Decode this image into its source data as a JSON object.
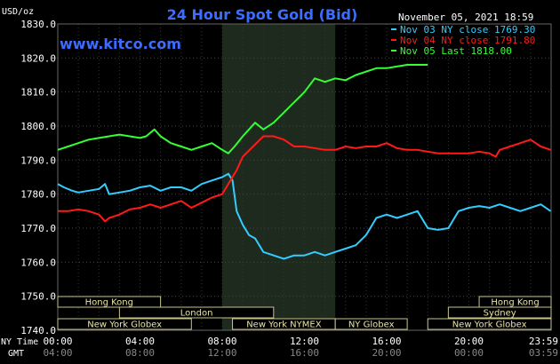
{
  "chart_data": {
    "type": "line",
    "title": "24 Hour Spot Gold (Bid)",
    "date_label": "November 05, 2021 18:59",
    "watermark": "www.kitco.com",
    "yunit": "USD/oz",
    "ylim": [
      1740,
      1830
    ],
    "ytick_values": [
      1740,
      1750,
      1760,
      1770,
      1780,
      1790,
      1800,
      1810,
      1820,
      1830
    ],
    "ytick_labels": [
      "1740.0",
      "1750.0",
      "1760.0",
      "1770.0",
      "1780.0",
      "1790.0",
      "1800.0",
      "1810.0",
      "1820.0",
      "1830.0"
    ],
    "xlim": [
      0,
      24
    ],
    "xtick_values": [
      0,
      4,
      8,
      12,
      16,
      20,
      23.983
    ],
    "xtick_labels_ny": [
      "00:00",
      "04:00",
      "08:00",
      "12:00",
      "16:00",
      "20:00",
      "23:59"
    ],
    "xtick_labels_gmt": [
      "04:00",
      "08:00",
      "12:00",
      "16:00",
      "20:00",
      "00:00",
      "03:59"
    ],
    "x_axis_label_ny": "NY Time",
    "x_axis_label_gmt": "GMT",
    "shaded_range": [
      8,
      13.5
    ],
    "grid": true,
    "legend_position": "top-right",
    "series": [
      {
        "name": "Nov 03 NY close 1769.30",
        "color": "#33ccff",
        "x": [
          0,
          0.3,
          0.7,
          1.0,
          1.5,
          2.0,
          2.3,
          2.5,
          3.0,
          3.5,
          4.0,
          4.5,
          5.0,
          5.5,
          6.0,
          6.5,
          7.0,
          7.5,
          8.0,
          8.3,
          8.5,
          8.7,
          9.0,
          9.3,
          9.6,
          10.0,
          10.5,
          11.0,
          11.5,
          12.0,
          12.5,
          13.0,
          13.5,
          14.0,
          14.5,
          15.0,
          15.5,
          16.0,
          16.5,
          17.0,
          17.5,
          18.0,
          18.5,
          19.0,
          19.5,
          20.0,
          20.5,
          21.0,
          21.5,
          22.0,
          22.5,
          23.0,
          23.5,
          23.98
        ],
        "y": [
          1783,
          1782,
          1781,
          1780.5,
          1781,
          1781.5,
          1783,
          1780,
          1780.5,
          1781,
          1782,
          1782.5,
          1781,
          1782,
          1782,
          1781,
          1783,
          1784,
          1785,
          1786,
          1784,
          1775,
          1771,
          1768,
          1767,
          1763,
          1762,
          1761,
          1762,
          1762,
          1763,
          1762,
          1763,
          1764,
          1765,
          1768,
          1773,
          1774,
          1773,
          1774,
          1775,
          1770,
          1769.5,
          1770,
          1775,
          1776,
          1776.5,
          1776,
          1777,
          1776,
          1775,
          1776,
          1777,
          1775
        ]
      },
      {
        "name": "Nov 04 NY close 1791.80",
        "color": "#ff1a1a",
        "x": [
          0,
          0.5,
          1.0,
          1.5,
          2.0,
          2.3,
          2.5,
          3.0,
          3.5,
          4.0,
          4.5,
          5.0,
          5.5,
          6.0,
          6.5,
          7.0,
          7.5,
          8.0,
          8.3,
          8.7,
          9.0,
          9.5,
          10.0,
          10.5,
          11.0,
          11.5,
          12.0,
          12.5,
          13.0,
          13.5,
          14.0,
          14.5,
          15.0,
          15.5,
          16.0,
          16.5,
          17.0,
          17.5,
          18.0,
          18.5,
          19.0,
          19.5,
          20.0,
          20.5,
          21.0,
          21.3,
          21.5,
          22.0,
          22.5,
          23.0,
          23.5,
          23.98
        ],
        "y": [
          1775,
          1775,
          1775.5,
          1775,
          1774,
          1772,
          1773,
          1774,
          1775.5,
          1776,
          1777,
          1776,
          1777,
          1778,
          1776,
          1777.5,
          1779,
          1780,
          1783,
          1787,
          1791,
          1794,
          1797,
          1797,
          1796,
          1794,
          1794,
          1793.5,
          1793,
          1793,
          1794,
          1793.5,
          1794,
          1794,
          1795,
          1793.5,
          1793,
          1793,
          1792.5,
          1792,
          1792,
          1792,
          1792,
          1792.5,
          1792,
          1791,
          1793,
          1794,
          1795,
          1796,
          1794,
          1793
        ]
      },
      {
        "name": "Nov 05 Last 1818.00",
        "color": "#33ff33",
        "x": [
          0,
          0.5,
          1.0,
          1.5,
          2.0,
          2.5,
          3.0,
          3.5,
          4.0,
          4.3,
          4.7,
          5.0,
          5.5,
          6.0,
          6.5,
          7.0,
          7.5,
          8.0,
          8.3,
          8.6,
          9.0,
          9.3,
          9.6,
          10.0,
          10.5,
          11.0,
          11.5,
          12.0,
          12.5,
          13.0,
          13.5,
          14.0,
          14.5,
          15.0,
          15.5,
          16.0,
          16.5,
          17.0,
          17.5,
          18.0
        ],
        "y": [
          1793,
          1794,
          1795,
          1796,
          1796.5,
          1797,
          1797.5,
          1797,
          1796.5,
          1797,
          1799,
          1797,
          1795,
          1794,
          1793,
          1794,
          1795,
          1793,
          1792,
          1794,
          1797,
          1799,
          1801,
          1799,
          1801,
          1804,
          1807,
          1810,
          1814,
          1813,
          1814,
          1813.5,
          1815,
          1816,
          1817,
          1817,
          1817.5,
          1818,
          1818,
          1818
        ]
      }
    ]
  },
  "market_bars": [
    {
      "label": "Hong Kong",
      "start": 0,
      "end": 5
    },
    {
      "label": "London",
      "start": 3,
      "end": 10.5
    },
    {
      "label": "New York Globex",
      "start": 0,
      "end": 6.5
    },
    {
      "label": "New York NYMEX",
      "start": 8.5,
      "end": 13.5
    },
    {
      "label": "NY Globex",
      "start": 13.5,
      "end": 17
    },
    {
      "label": "Hong Kong",
      "start": 20.5,
      "end": 24
    },
    {
      "label": "Sydney",
      "start": 19,
      "end": 24
    },
    {
      "label": "New York Globex",
      "start": 18,
      "end": 24
    }
  ]
}
